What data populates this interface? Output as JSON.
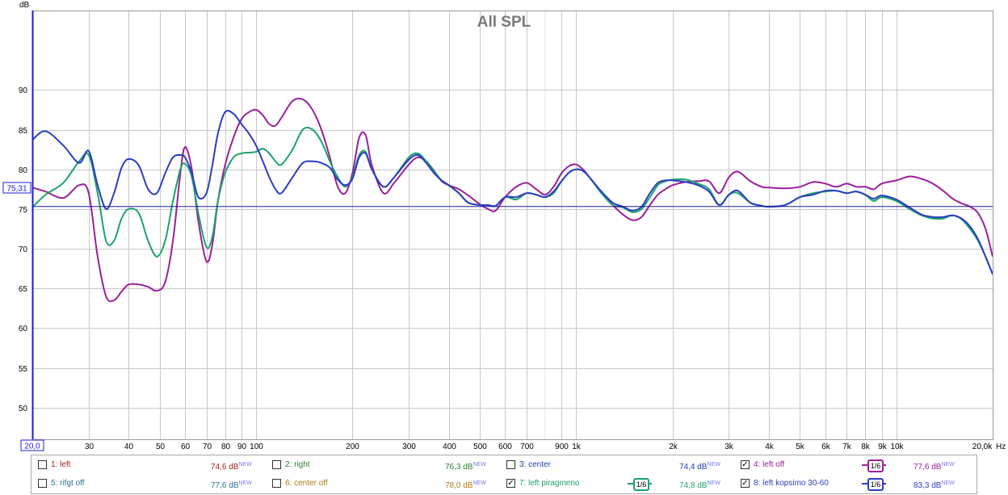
{
  "chart_data": {
    "type": "line",
    "title": "All SPL",
    "ylabel": "dB",
    "xlabel": "Hz",
    "x_scale": "log",
    "xlim": [
      20,
      20000
    ],
    "ylim": [
      46,
      100
    ],
    "y_ticks": [
      50,
      55,
      60,
      65,
      70,
      75,
      80,
      85,
      90
    ],
    "x_ticks": [
      {
        "value": 30,
        "label": "30"
      },
      {
        "value": 40,
        "label": "40"
      },
      {
        "value": 50,
        "label": "50"
      },
      {
        "value": 60,
        "label": "60"
      },
      {
        "value": 70,
        "label": "70"
      },
      {
        "value": 80,
        "label": "80"
      },
      {
        "value": 90,
        "label": "90"
      },
      {
        "value": 100,
        "label": "100"
      },
      {
        "value": 200,
        "label": "200"
      },
      {
        "value": 300,
        "label": "300"
      },
      {
        "value": 400,
        "label": "400"
      },
      {
        "value": 500,
        "label": "500"
      },
      {
        "value": 600,
        "label": "600"
      },
      {
        "value": 700,
        "label": "700"
      },
      {
        "value": 900,
        "label": "900"
      },
      {
        "value": 1000,
        "label": "1k"
      },
      {
        "value": 2000,
        "label": "2k"
      },
      {
        "value": 3000,
        "label": "3k"
      },
      {
        "value": 4000,
        "label": "4k"
      },
      {
        "value": 5000,
        "label": "5k"
      },
      {
        "value": 6000,
        "label": "6k"
      },
      {
        "value": 7000,
        "label": "7k"
      },
      {
        "value": 8000,
        "label": "8k"
      },
      {
        "value": 9000,
        "label": "9k"
      },
      {
        "value": 10000,
        "label": "10k"
      }
    ],
    "x_start_label": "20,0",
    "x_end_label": "20,0k",
    "reference_line": {
      "value": 75.31,
      "label": "75,31"
    },
    "series": [
      {
        "name": "4: left off",
        "color": "#9b1e9b",
        "x": [
          20,
          22,
          25,
          28,
          30,
          32,
          34,
          36,
          38,
          40,
          43,
          46,
          49,
          52,
          55,
          58,
          60,
          63,
          66,
          70,
          73,
          76,
          80,
          85,
          90,
          95,
          100,
          105,
          110,
          115,
          120,
          130,
          140,
          150,
          160,
          170,
          180,
          190,
          200,
          210,
          220,
          230,
          250,
          270,
          300,
          320,
          340,
          360,
          380,
          400,
          430,
          460,
          500,
          530,
          560,
          600,
          650,
          700,
          750,
          800,
          850,
          900,
          950,
          1000,
          1050,
          1100,
          1200,
          1300,
          1400,
          1500,
          1600,
          1700,
          1800,
          1900,
          2000,
          2200,
          2400,
          2600,
          2800,
          3000,
          3200,
          3500,
          3800,
          4000,
          4500,
          5000,
          5500,
          6000,
          6500,
          7000,
          7500,
          8000,
          8500,
          9000,
          10000,
          11000,
          12000,
          13000,
          14000,
          15000,
          16000,
          17000,
          18000,
          19000,
          20000
        ],
        "y": [
          77.7,
          77.2,
          76.4,
          78.0,
          77.0,
          69.0,
          64.0,
          63.5,
          64.6,
          65.5,
          65.5,
          65.2,
          64.7,
          65.8,
          71.0,
          79.5,
          82.8,
          80.0,
          73.5,
          68.4,
          70.5,
          76.0,
          80.5,
          84.0,
          86.3,
          87.2,
          87.5,
          86.8,
          85.7,
          85.5,
          86.5,
          88.6,
          88.8,
          87.5,
          85.0,
          81.5,
          77.8,
          77.0,
          79.5,
          84.0,
          84.3,
          80.5,
          77.0,
          78.3,
          80.6,
          81.5,
          81.0,
          79.8,
          78.5,
          78.0,
          77.5,
          76.7,
          75.6,
          75.0,
          74.8,
          76.5,
          77.8,
          78.3,
          77.5,
          76.8,
          77.8,
          79.5,
          80.4,
          80.6,
          80.0,
          79.0,
          77.0,
          75.5,
          74.3,
          73.6,
          74.0,
          75.5,
          76.8,
          77.5,
          78.0,
          78.4,
          78.5,
          78.5,
          77.0,
          79.0,
          79.7,
          78.5,
          77.8,
          77.7,
          77.6,
          77.8,
          78.4,
          78.2,
          77.8,
          78.2,
          77.8,
          77.8,
          77.5,
          78.2,
          78.6,
          79.1,
          78.8,
          78.2,
          77.3,
          76.3,
          75.7,
          75.3,
          74.5,
          72.5,
          69.0
        ]
      },
      {
        "name": "7: left piragmeno",
        "color": "#1aa36b",
        "x": [
          20,
          22,
          25,
          28,
          30,
          32,
          34,
          36,
          38,
          40,
          43,
          46,
          49,
          52,
          55,
          58,
          60,
          63,
          66,
          70,
          73,
          76,
          80,
          85,
          90,
          95,
          100,
          105,
          110,
          115,
          120,
          130,
          140,
          150,
          160,
          170,
          180,
          190,
          200,
          210,
          220,
          230,
          250,
          270,
          300,
          320,
          340,
          360,
          380,
          400,
          430,
          460,
          500,
          530,
          560,
          600,
          650,
          700,
          750,
          800,
          850,
          900,
          950,
          1000,
          1050,
          1100,
          1200,
          1300,
          1400,
          1500,
          1600,
          1700,
          1800,
          1900,
          2000,
          2200,
          2400,
          2600,
          2800,
          3000,
          3200,
          3500,
          3800,
          4000,
          4500,
          5000,
          5500,
          6000,
          6500,
          7000,
          7500,
          8000,
          8500,
          9000,
          10000,
          11000,
          12000,
          13000,
          14000,
          15000,
          16000,
          17000,
          18000,
          19000,
          20000
        ],
        "y": [
          75.2,
          76.8,
          78.3,
          81.0,
          81.8,
          77.0,
          71.0,
          71.0,
          73.8,
          75.0,
          74.5,
          71.0,
          69.0,
          71.0,
          76.0,
          80.0,
          80.7,
          79.0,
          74.5,
          70.2,
          71.5,
          76.0,
          79.5,
          81.5,
          82.0,
          82.1,
          82.2,
          82.6,
          82.0,
          81.0,
          80.6,
          82.5,
          85.0,
          85.0,
          83.5,
          81.0,
          79.0,
          77.8,
          79.0,
          81.8,
          82.2,
          80.0,
          77.8,
          79.0,
          81.5,
          82.0,
          81.0,
          79.7,
          78.6,
          78.0,
          77.0,
          75.8,
          75.5,
          75.5,
          75.4,
          76.5,
          76.2,
          77.0,
          76.8,
          76.5,
          77.0,
          78.5,
          79.6,
          80.0,
          79.8,
          79.0,
          77.0,
          75.5,
          75.2,
          74.6,
          75.0,
          76.5,
          78.0,
          78.5,
          78.7,
          78.7,
          78.2,
          77.5,
          75.5,
          76.8,
          77.0,
          75.8,
          75.4,
          75.3,
          75.5,
          76.5,
          77.0,
          77.2,
          77.3,
          77.0,
          77.2,
          76.8,
          76.0,
          76.5,
          76.0,
          75.0,
          74.2,
          73.8,
          73.8,
          74.2,
          73.7,
          72.5,
          71.0,
          69.0,
          66.8
        ]
      },
      {
        "name": "8: left kopsimo 30-60",
        "color": "#2b3ec1",
        "x": [
          20,
          22,
          25,
          28,
          30,
          32,
          34,
          36,
          38,
          40,
          43,
          46,
          49,
          52,
          55,
          58,
          60,
          63,
          66,
          70,
          73,
          76,
          80,
          85,
          90,
          95,
          100,
          105,
          110,
          115,
          120,
          130,
          140,
          150,
          160,
          170,
          180,
          190,
          200,
          210,
          220,
          230,
          250,
          270,
          300,
          320,
          340,
          360,
          380,
          400,
          430,
          460,
          500,
          530,
          560,
          600,
          650,
          700,
          750,
          800,
          850,
          900,
          950,
          1000,
          1050,
          1100,
          1200,
          1300,
          1400,
          1500,
          1600,
          1700,
          1800,
          1900,
          2000,
          2200,
          2400,
          2600,
          2800,
          3000,
          3200,
          3500,
          3800,
          4000,
          4500,
          5000,
          5500,
          6000,
          6500,
          7000,
          7500,
          8000,
          8500,
          9000,
          10000,
          11000,
          12000,
          13000,
          14000,
          15000,
          16000,
          17000,
          18000,
          19000,
          20000
        ],
        "y": [
          83.7,
          84.8,
          83.0,
          80.8,
          82.3,
          78.0,
          75.0,
          77.0,
          80.2,
          81.3,
          80.5,
          77.5,
          77.0,
          79.5,
          81.5,
          81.8,
          81.5,
          79.5,
          76.5,
          77.0,
          80.5,
          84.5,
          87.2,
          87.0,
          85.7,
          84.5,
          83.0,
          81.0,
          79.0,
          77.5,
          77.0,
          79.0,
          80.8,
          81.0,
          80.8,
          80.2,
          78.7,
          78.0,
          78.8,
          81.5,
          82.0,
          80.0,
          77.8,
          79.0,
          81.2,
          81.8,
          80.8,
          79.5,
          78.6,
          78.0,
          77.0,
          75.8,
          75.5,
          75.5,
          75.4,
          76.5,
          76.5,
          77.0,
          76.8,
          76.5,
          77.2,
          78.5,
          79.6,
          80.0,
          79.8,
          79.0,
          77.2,
          75.8,
          75.3,
          74.8,
          75.3,
          77.0,
          78.3,
          78.6,
          78.6,
          78.4,
          78.0,
          77.2,
          75.5,
          76.8,
          77.3,
          75.8,
          75.4,
          75.3,
          75.5,
          76.5,
          76.8,
          77.3,
          77.3,
          77.0,
          77.2,
          76.8,
          76.3,
          76.7,
          76.2,
          75.2,
          74.3,
          74.0,
          74.0,
          74.2,
          73.8,
          72.8,
          71.2,
          69.0,
          66.8
        ]
      }
    ]
  },
  "legend": [
    {
      "label": "1: left",
      "value": "74,6 dB",
      "tag": "NEW",
      "checked": false,
      "color": "#9c1b1b",
      "smoothing": ""
    },
    {
      "label": "2: right",
      "value": "76,3 dB",
      "tag": "NEW",
      "checked": false,
      "color": "#2e7d32",
      "smoothing": ""
    },
    {
      "label": "3: center",
      "value": "74,4 dB",
      "tag": "NEW",
      "checked": false,
      "color": "#1f3fa8",
      "smoothing": ""
    },
    {
      "label": "4: left off",
      "value": "77,6 dB",
      "tag": "NEW",
      "checked": true,
      "color": "#9b1e9b",
      "smoothing": "1/6"
    },
    {
      "label": "5: rifgt off",
      "value": "77,6 dB",
      "tag": "NEW",
      "checked": false,
      "color": "#2a6f93",
      "smoothing": ""
    },
    {
      "label": "6: center off",
      "value": "78,0 dB",
      "tag": "NEW",
      "checked": false,
      "color": "#b07b10",
      "smoothing": ""
    },
    {
      "label": "7: left piragmeno",
      "value": "74,8 dB",
      "tag": "NEW",
      "checked": true,
      "color": "#1aa36b",
      "smoothing": "1/6"
    },
    {
      "label": "8: left kopsimo 30-60",
      "value": "83,3 dB",
      "tag": "NEW",
      "checked": true,
      "color": "#2b3ec1",
      "smoothing": "1/6"
    }
  ]
}
